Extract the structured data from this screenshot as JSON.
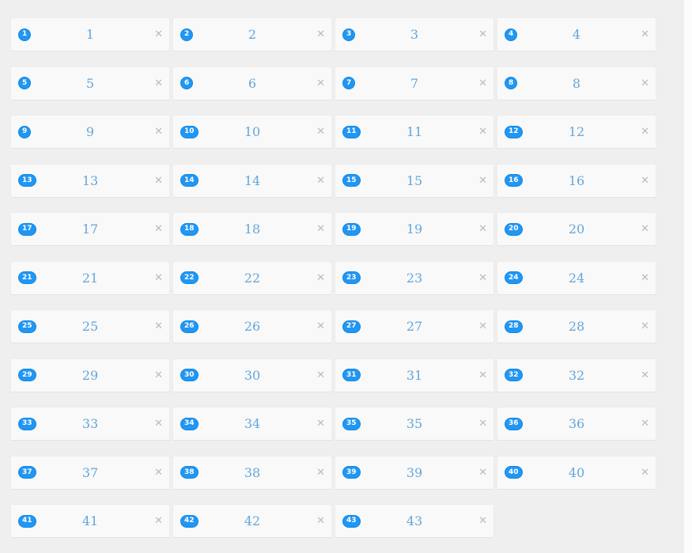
{
  "colors": {
    "page_bg": "#efefef",
    "card_bg": "#f9f9f9",
    "card_border": "#ececec",
    "badge_bg": "#2196f3",
    "badge_text": "#ffffff",
    "number_text": "#63a6db",
    "close_icon": "#b8bcbe",
    "scroll_track": "#fcfcfc"
  },
  "grid": {
    "columns": 4,
    "close_glyph": "✕",
    "items": [
      {
        "badge": "1",
        "value": "1"
      },
      {
        "badge": "2",
        "value": "2"
      },
      {
        "badge": "3",
        "value": "3"
      },
      {
        "badge": "4",
        "value": "4"
      },
      {
        "badge": "5",
        "value": "5"
      },
      {
        "badge": "6",
        "value": "6"
      },
      {
        "badge": "7",
        "value": "7"
      },
      {
        "badge": "8",
        "value": "8"
      },
      {
        "badge": "9",
        "value": "9"
      },
      {
        "badge": "10",
        "value": "10"
      },
      {
        "badge": "11",
        "value": "11"
      },
      {
        "badge": "12",
        "value": "12"
      },
      {
        "badge": "13",
        "value": "13"
      },
      {
        "badge": "14",
        "value": "14"
      },
      {
        "badge": "15",
        "value": "15"
      },
      {
        "badge": "16",
        "value": "16"
      },
      {
        "badge": "17",
        "value": "17"
      },
      {
        "badge": "18",
        "value": "18"
      },
      {
        "badge": "19",
        "value": "19"
      },
      {
        "badge": "20",
        "value": "20"
      },
      {
        "badge": "21",
        "value": "21"
      },
      {
        "badge": "22",
        "value": "22"
      },
      {
        "badge": "23",
        "value": "23"
      },
      {
        "badge": "24",
        "value": "24"
      },
      {
        "badge": "25",
        "value": "25"
      },
      {
        "badge": "26",
        "value": "26"
      },
      {
        "badge": "27",
        "value": "27"
      },
      {
        "badge": "28",
        "value": "28"
      },
      {
        "badge": "29",
        "value": "29"
      },
      {
        "badge": "30",
        "value": "30"
      },
      {
        "badge": "31",
        "value": "31"
      },
      {
        "badge": "32",
        "value": "32"
      },
      {
        "badge": "33",
        "value": "33"
      },
      {
        "badge": "34",
        "value": "34"
      },
      {
        "badge": "35",
        "value": "35"
      },
      {
        "badge": "36",
        "value": "36"
      },
      {
        "badge": "37",
        "value": "37"
      },
      {
        "badge": "38",
        "value": "38"
      },
      {
        "badge": "39",
        "value": "39"
      },
      {
        "badge": "40",
        "value": "40"
      },
      {
        "badge": "41",
        "value": "41"
      },
      {
        "badge": "42",
        "value": "42"
      },
      {
        "badge": "43",
        "value": "43"
      }
    ]
  }
}
